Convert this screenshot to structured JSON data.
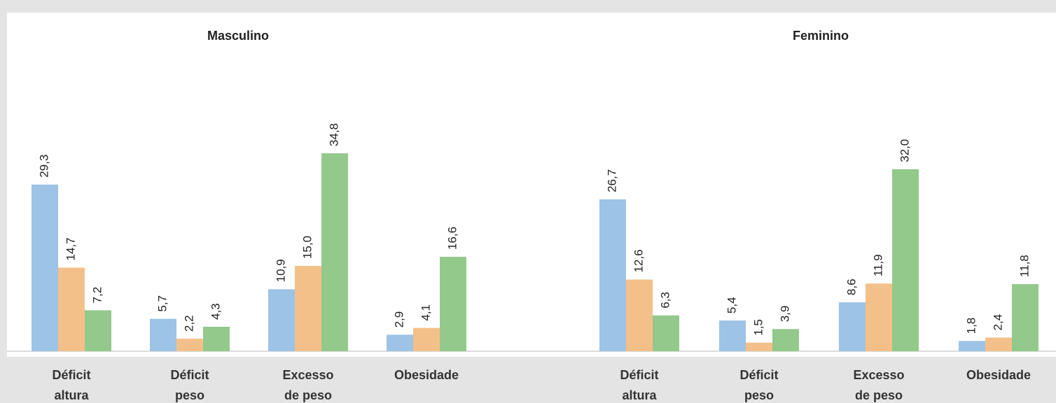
{
  "chart_data": [
    {
      "type": "bar",
      "title": "Masculino",
      "categories": [
        [
          "Déficit",
          "altura"
        ],
        [
          "Déficit",
          "peso"
        ],
        [
          "Excesso",
          "de peso"
        ],
        [
          "Obesidade"
        ]
      ],
      "series": [
        {
          "color": "#9dc3e6",
          "values": [
            29.3,
            5.7,
            10.9,
            2.9
          ],
          "value_labels": [
            "29,3",
            "5,7",
            "10,9",
            "2,9"
          ]
        },
        {
          "color": "#f4c08a",
          "values": [
            14.7,
            2.2,
            15.0,
            4.1
          ],
          "value_labels": [
            "14,7",
            "2,2",
            "15,0",
            "4,1"
          ]
        },
        {
          "color": "#93c98b",
          "values": [
            7.2,
            4.3,
            34.8,
            16.6
          ],
          "value_labels": [
            "7,2",
            "4,3",
            "34,8",
            "16,6"
          ]
        }
      ]
    },
    {
      "type": "bar",
      "title": "Feminino",
      "categories": [
        [
          "Déficit",
          "altura"
        ],
        [
          "Déficit",
          "peso"
        ],
        [
          "Excesso",
          "de peso"
        ],
        [
          "Obesidade"
        ]
      ],
      "series": [
        {
          "color": "#9dc3e6",
          "values": [
            26.7,
            5.4,
            8.6,
            1.8
          ],
          "value_labels": [
            "26,7",
            "5,4",
            "8,6",
            "1,8"
          ]
        },
        {
          "color": "#f4c08a",
          "values": [
            12.6,
            1.5,
            11.9,
            2.4
          ],
          "value_labels": [
            "12,6",
            "1,5",
            "11,9",
            "2,4"
          ]
        },
        {
          "color": "#93c98b",
          "values": [
            6.3,
            3.9,
            32.0,
            11.8
          ],
          "value_labels": [
            "6,3",
            "3,9",
            "32,0",
            "11,8"
          ]
        }
      ]
    }
  ]
}
